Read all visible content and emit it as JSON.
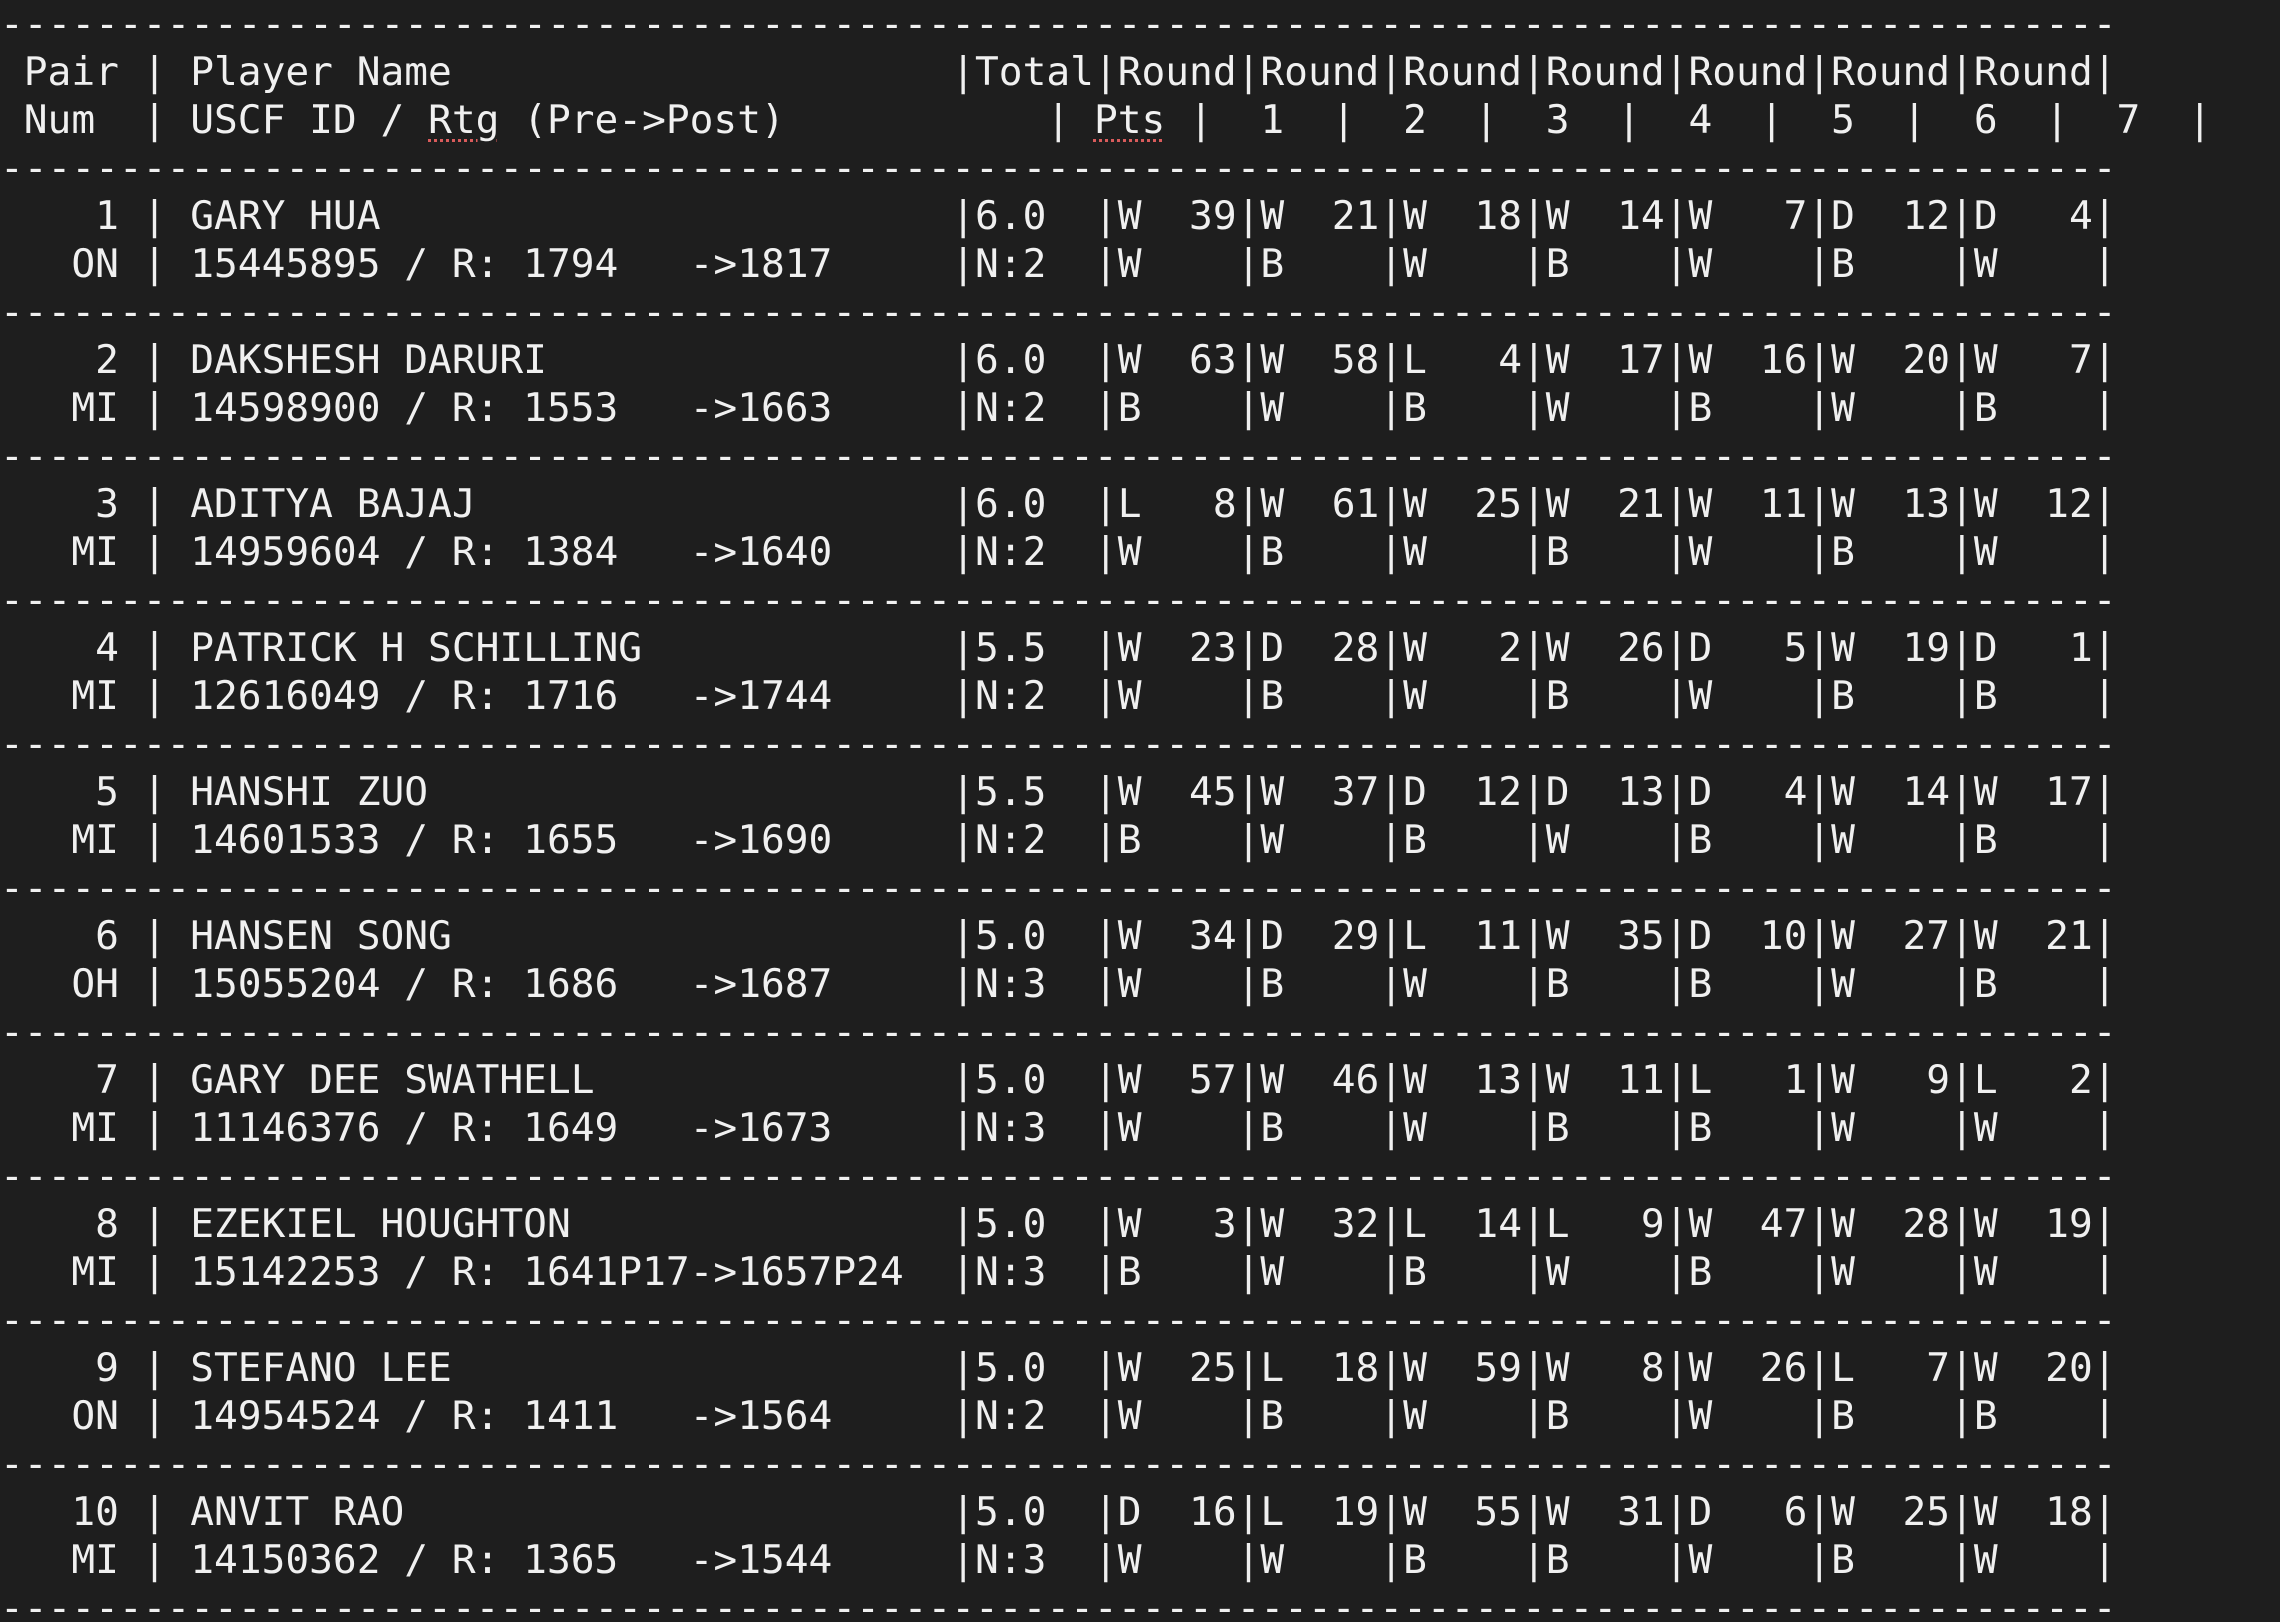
{
  "colors": {
    "background": "#1e1e1e",
    "text": "#f0f0f0",
    "spellcheck_underline": "#d95b5b"
  },
  "separator": "-----------------------------------------------------------------------------------------",
  "header": {
    "line1_a": " Pair | Player Name                     |Total|Round|Round|Round|Round|Round|Round|Round| ",
    "line2_a": " Num  | USCF ID / ",
    "line2_rtg": "Rtg",
    "line2_b": " (Pre->Post)           | ",
    "line2_pts": "Pts",
    "line2_c": " |  1  |  2  |  3  |  4  |  5  |  6  |  7  |"
  },
  "rows": [
    {
      "line1": "    1 | GARY HUA                        |6.0  |W  39|W  21|W  18|W  14|W   7|D  12|D   4|",
      "line2": "   ON | 15445895 / R: 1794   ->1817     |N:2  |W    |B    |W    |B    |W    |B    |W    |"
    },
    {
      "line1": "    2 | DAKSHESH DARURI                 |6.0  |W  63|W  58|L   4|W  17|W  16|W  20|W   7|",
      "line2": "   MI | 14598900 / R: 1553   ->1663     |N:2  |B    |W    |B    |W    |B    |W    |B    |"
    },
    {
      "line1": "    3 | ADITYA BAJAJ                    |6.0  |L   8|W  61|W  25|W  21|W  11|W  13|W  12|",
      "line2": "   MI | 14959604 / R: 1384   ->1640     |N:2  |W    |B    |W    |B    |W    |B    |W    |"
    },
    {
      "line1": "    4 | PATRICK H SCHILLING             |5.5  |W  23|D  28|W   2|W  26|D   5|W  19|D   1|",
      "line2": "   MI | 12616049 / R: 1716   ->1744     |N:2  |W    |B    |W    |B    |W    |B    |B    |"
    },
    {
      "line1": "    5 | HANSHI ZUO                      |5.5  |W  45|W  37|D  12|D  13|D   4|W  14|W  17|",
      "line2": "   MI | 14601533 / R: 1655   ->1690     |N:2  |B    |W    |B    |W    |B    |W    |B    |"
    },
    {
      "line1": "    6 | HANSEN SONG                     |5.0  |W  34|D  29|L  11|W  35|D  10|W  27|W  21|",
      "line2": "   OH | 15055204 / R: 1686   ->1687     |N:3  |W    |B    |W    |B    |B    |W    |B    |"
    },
    {
      "line1": "    7 | GARY DEE SWATHELL               |5.0  |W  57|W  46|W  13|W  11|L   1|W   9|L   2|",
      "line2": "   MI | 11146376 / R: 1649   ->1673     |N:3  |W    |B    |W    |B    |B    |W    |W    |"
    },
    {
      "line1": "    8 | EZEKIEL HOUGHTON                |5.0  |W   3|W  32|L  14|L   9|W  47|W  28|W  19|",
      "line2": "   MI | 15142253 / R: 1641P17->1657P24  |N:3  |B    |W    |B    |W    |B    |W    |W    |"
    },
    {
      "line1": "    9 | STEFANO LEE                     |5.0  |W  25|L  18|W  59|W   8|W  26|L   7|W  20|",
      "line2": "   ON | 14954524 / R: 1411   ->1564     |N:2  |W    |B    |W    |B    |W    |B    |B    |"
    },
    {
      "line1": "   10 | ANVIT RAO                       |5.0  |D  16|L  19|W  55|W  31|D   6|W  25|W  18|",
      "line2": "   MI | 14150362 / R: 1365   ->1544     |N:3  |W    |W    |B    |B    |W    |B    |W    |"
    }
  ]
}
